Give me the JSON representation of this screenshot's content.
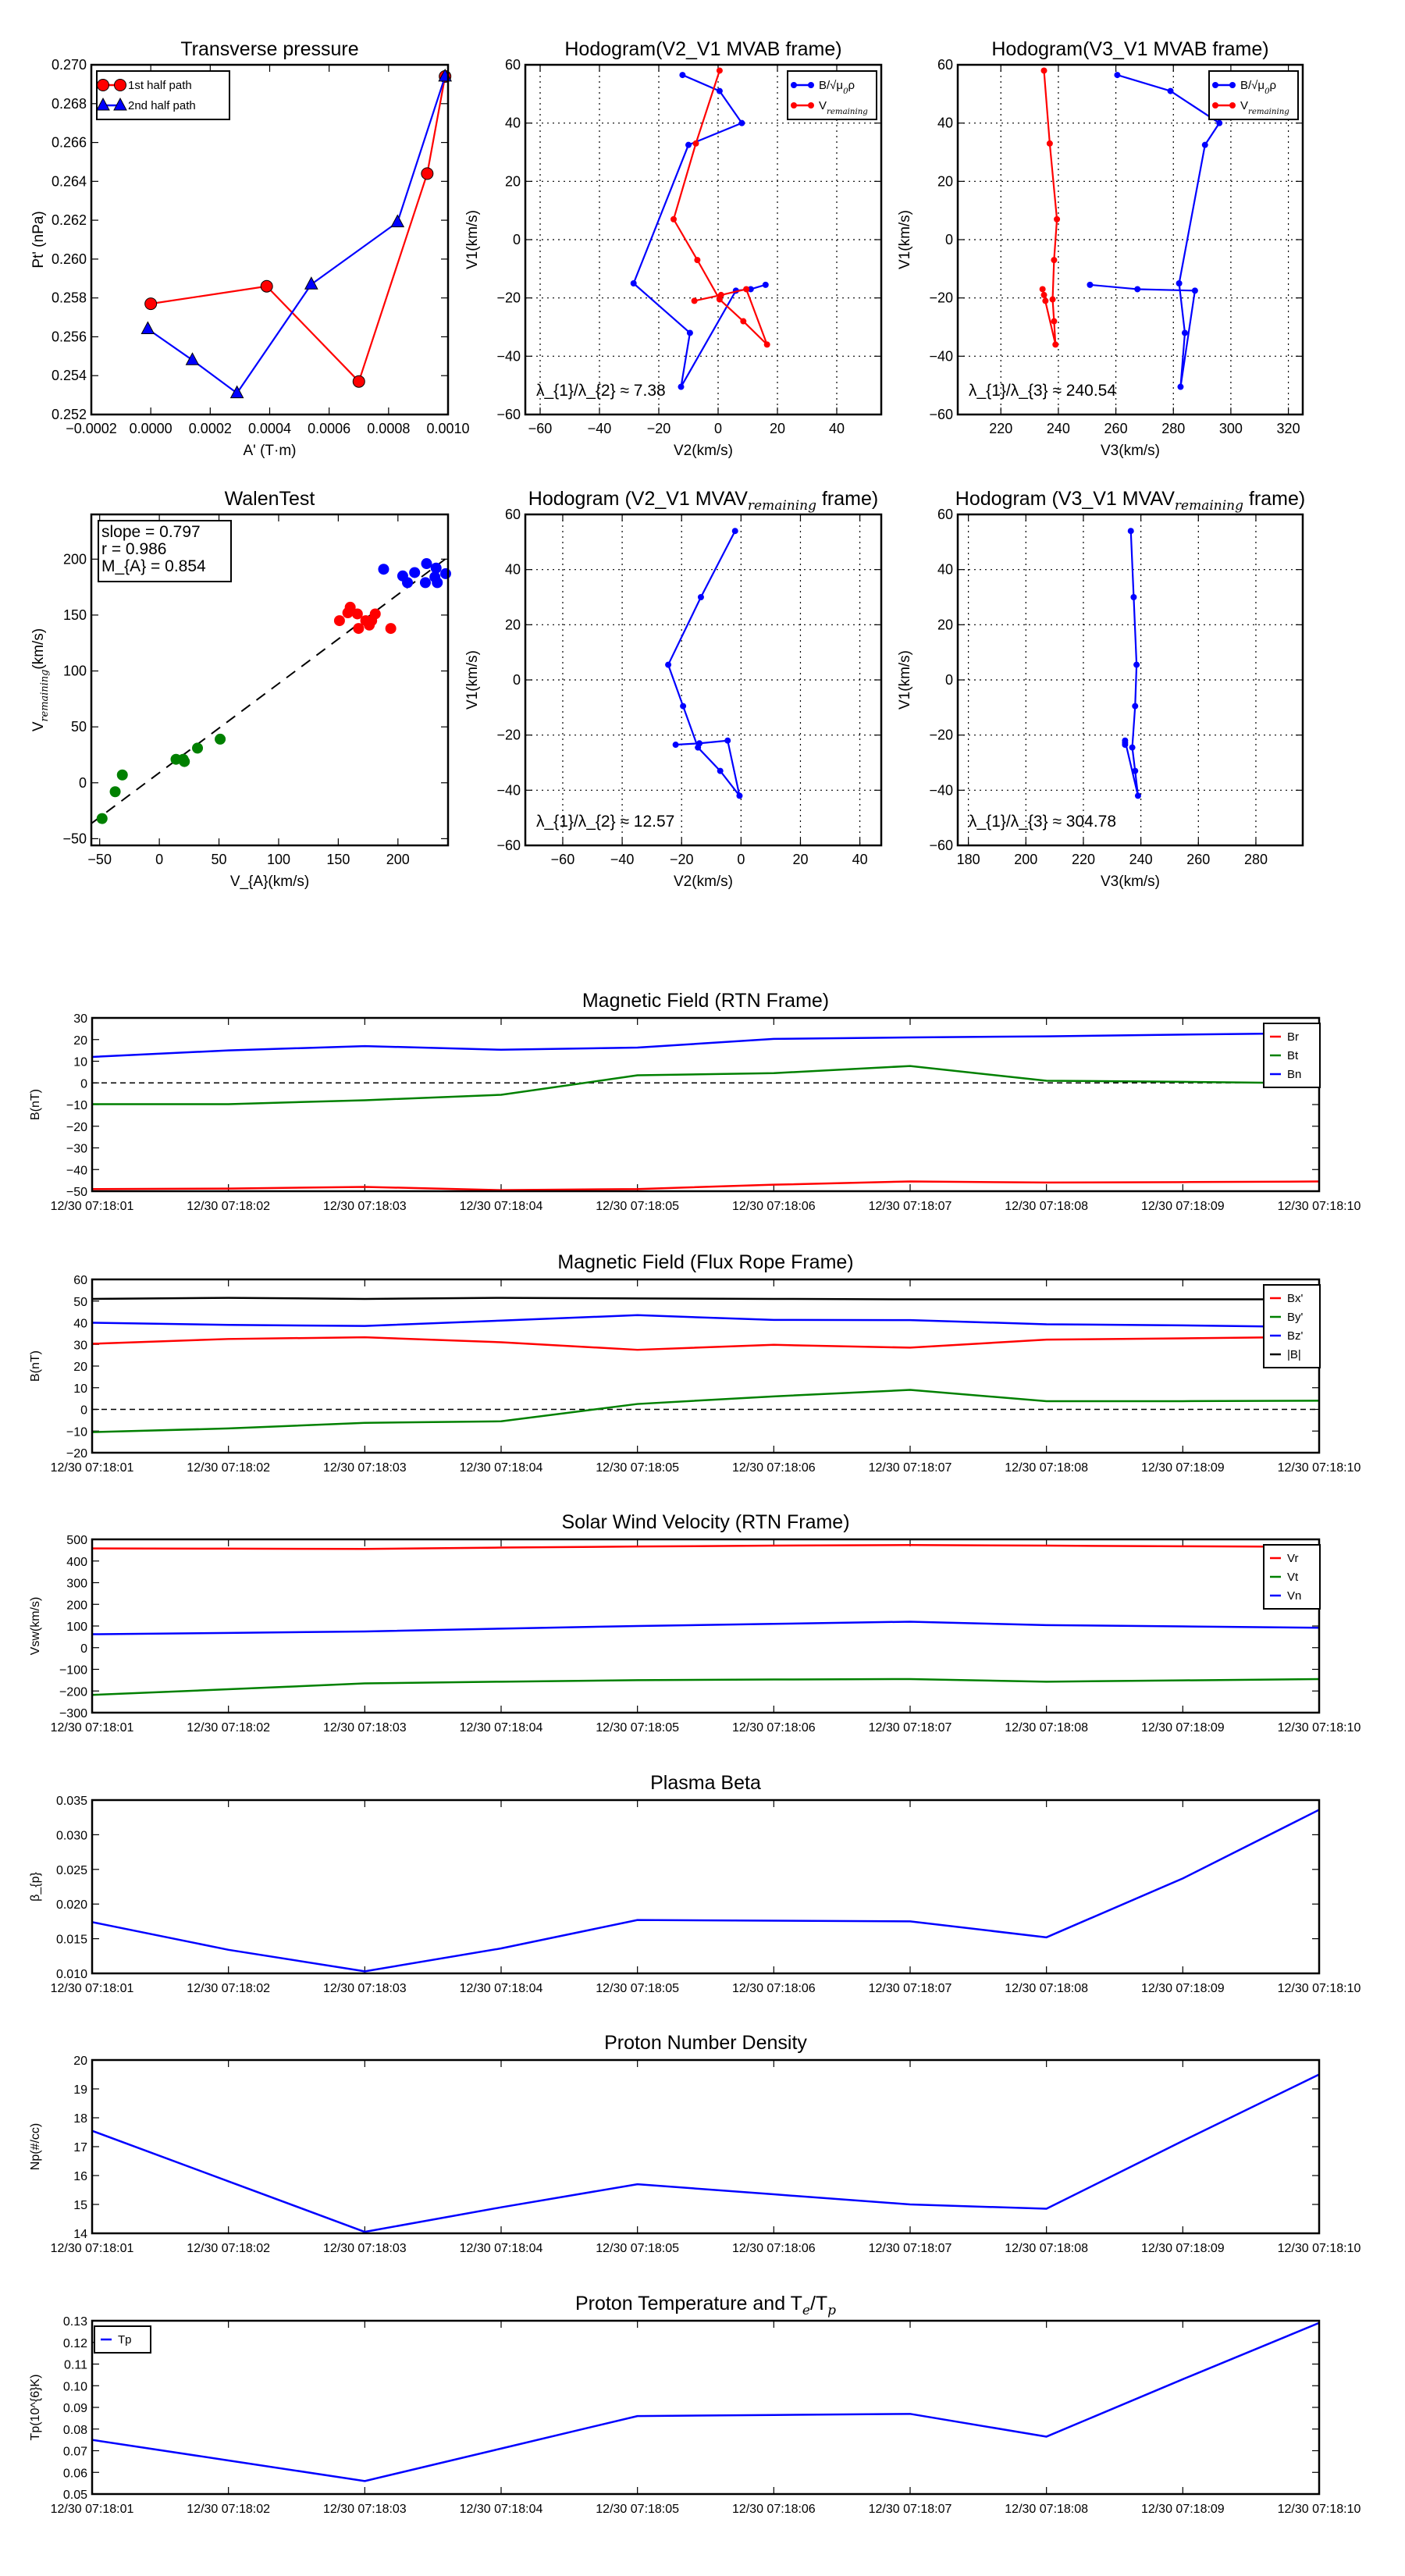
{
  "colors": {
    "red": "#ff0000",
    "green": "#008000",
    "blue": "#0000ff",
    "black": "#000000"
  },
  "chart_data": [
    {
      "type": "line",
      "title": "Transverse pressure",
      "xlabel": "A' (T·m)",
      "ylabel": "Pt' (nPa)",
      "xlim": [
        -0.0002,
        0.001
      ],
      "ylim": [
        0.252,
        0.27
      ],
      "xticks": [
        -0.0002,
        0,
        0.0002,
        0.0004,
        0.0006,
        0.0008,
        0.001
      ],
      "xtick_labels": [
        "−0.0002",
        "0.0000",
        "0.0002",
        "0.0004",
        "0.0006",
        "0.0008",
        "0.0010"
      ],
      "yticks": [
        0.252,
        0.254,
        0.256,
        0.258,
        0.26,
        0.262,
        0.264,
        0.266,
        0.268,
        0.27
      ],
      "ytick_labels": [
        "0.252",
        "0.254",
        "0.256",
        "0.258",
        "0.260",
        "0.262",
        "0.264",
        "0.266",
        "0.268",
        "0.270"
      ],
      "grid": false,
      "legend": "top-left",
      "series": [
        {
          "name": "1st half path",
          "color": "#ff0000",
          "marker": "circle",
          "x": [
            0.0,
            0.00039,
            0.0007,
            0.00093,
            0.00099
          ],
          "y": [
            0.2577,
            0.2586,
            0.2537,
            0.2644,
            0.2694
          ]
        },
        {
          "name": "2nd half path",
          "color": "#0000ff",
          "marker": "triangle",
          "x": [
            -1e-05,
            0.00014,
            0.00029,
            0.00054,
            0.00083,
            0.00099
          ],
          "y": [
            0.2564,
            0.2548,
            0.2531,
            0.2587,
            0.2619,
            0.2694
          ]
        }
      ]
    },
    {
      "type": "line",
      "title": "Hodogram(V2_V1 MVAB frame)",
      "xlabel": "V2(km/s)",
      "ylabel": "V1(km/s)",
      "xlim": [
        -65,
        55
      ],
      "ylim": [
        -60,
        60
      ],
      "xticks": [
        -60,
        -40,
        -20,
        0,
        20,
        40
      ],
      "xtick_labels": [
        "−60",
        "−40",
        "−20",
        "0",
        "20",
        "40"
      ],
      "yticks": [
        -60,
        -40,
        -20,
        0,
        20,
        40,
        60
      ],
      "ytick_labels": [
        "−60",
        "−40",
        "−20",
        "0",
        "20",
        "40",
        "60"
      ],
      "grid": true,
      "legend": "top-right",
      "annotation": "λ_{1}/λ_{2} ≈ 7.38",
      "series": [
        {
          "name": "B/√μ_{0}ρ",
          "color": "#0000ff",
          "marker": "dot",
          "x": [
            -12,
            0.5,
            8,
            -10,
            -28.5,
            -9.5,
            -12.5,
            6,
            11,
            16
          ],
          "y": [
            56.5,
            51,
            40,
            32.5,
            -15,
            -32,
            -50.5,
            -17.5,
            -17,
            -15.5
          ]
        },
        {
          "name": "V_{remaining}",
          "color": "#ff0000",
          "marker": "dot",
          "x": [
            0.5,
            -7.5,
            -15,
            -7,
            0.5,
            8.5,
            16.5,
            9.5,
            1,
            -8
          ],
          "y": [
            58,
            33,
            7,
            -7,
            -20.5,
            -28,
            -36,
            -17,
            -19,
            -21
          ]
        }
      ]
    },
    {
      "type": "line",
      "title": "Hodogram(V3_V1 MVAB frame)",
      "xlabel": "V3(km/s)",
      "ylabel": "V1(km/s)",
      "xlim": [
        205,
        325
      ],
      "ylim": [
        -60,
        60
      ],
      "xticks": [
        220,
        240,
        260,
        280,
        300,
        320
      ],
      "xtick_labels": [
        "220",
        "240",
        "260",
        "280",
        "300",
        "320"
      ],
      "yticks": [
        -60,
        -40,
        -20,
        0,
        20,
        40,
        60
      ],
      "ytick_labels": [
        "−60",
        "−40",
        "−20",
        "0",
        "20",
        "40",
        "60"
      ],
      "grid": true,
      "legend": "top-right",
      "annotation": "λ_{1}/λ_{3} ≈ 240.54",
      "series": [
        {
          "name": "B/√μ_{0}ρ",
          "color": "#0000ff",
          "marker": "dot",
          "x": [
            260.5,
            279,
            296,
            291,
            282,
            284,
            282.5,
            287.5,
            267.5,
            251
          ],
          "y": [
            56.5,
            51,
            40,
            32.5,
            -15,
            -32,
            -50.5,
            -17.5,
            -17,
            -15.5
          ]
        },
        {
          "name": "V_{remaining}",
          "color": "#ff0000",
          "marker": "dot",
          "x": [
            235,
            237,
            239.5,
            238.5,
            238,
            238.5,
            239,
            234.5,
            235,
            235.5
          ],
          "y": [
            58,
            33,
            7,
            -7,
            -20.5,
            -28,
            -36,
            -17,
            -19,
            -21
          ]
        }
      ]
    },
    {
      "type": "scatter",
      "title": "WalenTest",
      "xlabel": "V_{A}(km/s)",
      "ylabel": "V_{remaining}(km/s)",
      "xlim": [
        -57,
        242
      ],
      "ylim": [
        -56,
        240
      ],
      "xticks": [
        -50,
        0,
        50,
        100,
        150,
        200
      ],
      "xtick_labels": [
        "−50",
        "0",
        "50",
        "100",
        "150",
        "200"
      ],
      "yticks": [
        -50,
        0,
        50,
        100,
        150,
        200
      ],
      "ytick_labels": [
        "−50",
        "0",
        "50",
        "100",
        "150",
        "200"
      ],
      "grid": false,
      "stats": [
        "slope = 0.797",
        "r = 0.986",
        "M_{A} = 0.854"
      ],
      "fit": {
        "slope": 0.797,
        "intercept": 9
      },
      "series": [
        {
          "name": "green",
          "color": "#008000",
          "marker": "bigdot",
          "noline": true,
          "x": [
            -48,
            -37,
            -31,
            14,
            20,
            21,
            32,
            51
          ],
          "y": [
            -32,
            -8,
            7,
            21,
            21,
            19,
            31,
            39
          ]
        },
        {
          "name": "red",
          "color": "#ff0000",
          "marker": "bigdot",
          "noline": true,
          "x": [
            151,
            158,
            160,
            166,
            167,
            173,
            176,
            178,
            181,
            194
          ],
          "y": [
            145,
            152,
            157,
            151,
            138,
            145,
            141,
            145,
            151,
            138
          ]
        },
        {
          "name": "blue",
          "color": "#0000ff",
          "marker": "bigdot",
          "noline": true,
          "x": [
            188,
            204,
            208,
            214,
            223,
            224,
            231,
            232,
            233,
            240
          ],
          "y": [
            191,
            185,
            179,
            188,
            179,
            196,
            184,
            192,
            179,
            187
          ]
        }
      ]
    },
    {
      "type": "line",
      "title": "Hodogram (V2_V1 MVAV_{remaining} frame)",
      "xlabel": "V2(km/s)",
      "ylabel": "V1(km/s)",
      "xlim": [
        -72.6,
        47.2
      ],
      "ylim": [
        -60,
        60
      ],
      "xticks": [
        -60,
        -40,
        -20,
        0,
        20,
        40
      ],
      "xtick_labels": [
        "−60",
        "−40",
        "−20",
        "0",
        "20",
        "40"
      ],
      "yticks": [
        -60,
        -40,
        -20,
        0,
        20,
        40,
        60
      ],
      "ytick_labels": [
        "−60",
        "−40",
        "−20",
        "0",
        "20",
        "40",
        "60"
      ],
      "grid": true,
      "annotation": "λ_{1}/λ_{2} ≈ 12.57",
      "series": [
        {
          "name": "V",
          "color": "#0000ff",
          "marker": "dot",
          "nolegend": true,
          "x": [
            -2,
            -13.5,
            -24.5,
            -19.5,
            -14.5,
            -7,
            -0.5,
            -4.5,
            -14,
            -22
          ],
          "y": [
            54,
            30,
            5.5,
            -9.5,
            -24.5,
            -33,
            -42,
            -22,
            -23,
            -23.5
          ]
        }
      ]
    },
    {
      "type": "line",
      "title": "Hodogram (V3_V1 MVAV_{remaining} frame)",
      "xlabel": "V3(km/s)",
      "ylabel": "V1(km/s)",
      "xlim": [
        176.3,
        296.3
      ],
      "ylim": [
        -60,
        60
      ],
      "xticks": [
        180,
        200,
        220,
        240,
        260,
        280
      ],
      "xtick_labels": [
        "180",
        "200",
        "220",
        "240",
        "260",
        "280"
      ],
      "yticks": [
        -60,
        -40,
        -20,
        0,
        20,
        40,
        60
      ],
      "ytick_labels": [
        "−60",
        "−40",
        "−20",
        "0",
        "20",
        "40",
        "60"
      ],
      "grid": true,
      "annotation": "λ_{1}/λ_{3} ≈ 304.78",
      "series": [
        {
          "name": "V",
          "color": "#0000ff",
          "marker": "dot",
          "nolegend": true,
          "x": [
            236.5,
            237.5,
            238.5,
            238,
            237,
            238,
            239,
            234.5,
            234.5,
            234.5
          ],
          "y": [
            54,
            30,
            5.5,
            -9.5,
            -24.5,
            -33,
            -42,
            -22,
            -22.8,
            -23.5
          ]
        }
      ]
    },
    {
      "type": "line",
      "title": "Magnetic Field (RTN Frame)",
      "ylabel": "B(nT)",
      "ylim": [
        -50,
        30
      ],
      "yticks": [
        -50,
        -40,
        -30,
        -20,
        -10,
        0,
        10,
        20,
        30
      ],
      "ytick_labels": [
        "−50",
        "−40",
        "−30",
        "−20",
        "−10",
        "0",
        "10",
        "20",
        "30"
      ],
      "time_labels": [
        "12/30 07:18:01",
        "12/30 07:18:02",
        "12/30 07:18:03",
        "12/30 07:18:04",
        "12/30 07:18:05",
        "12/30 07:18:06",
        "12/30 07:18:07",
        "12/30 07:18:08",
        "12/30 07:18:09",
        "12/30 07:18:10"
      ],
      "hline": 0,
      "legend": "top-right",
      "series": [
        {
          "name": "Br",
          "color": "#ff0000",
          "y": [
            -49,
            -48.8,
            -48,
            -49.5,
            -49,
            -47,
            -45.5,
            -46,
            -45.8,
            -45.5
          ]
        },
        {
          "name": "Bt",
          "color": "#008000",
          "y": [
            -9.8,
            -9.8,
            -8,
            -5.5,
            3.5,
            4.5,
            7.8,
            1,
            0.5,
            -0.2
          ]
        },
        {
          "name": "Bn",
          "color": "#0000ff",
          "y": [
            12,
            15,
            17,
            15.3,
            16.3,
            20.3,
            21,
            21.5,
            22.3,
            23
          ]
        }
      ]
    },
    {
      "type": "line",
      "title": "Magnetic Field (Flux Rope Frame)",
      "ylabel": "B(nT)",
      "ylim": [
        -20,
        60
      ],
      "yticks": [
        -20,
        -10,
        0,
        10,
        20,
        30,
        40,
        50,
        60
      ],
      "ytick_labels": [
        "−20",
        "−10",
        "0",
        "10",
        "20",
        "30",
        "40",
        "50",
        "60"
      ],
      "time_labels": [
        "12/30 07:18:01",
        "12/30 07:18:02",
        "12/30 07:18:03",
        "12/30 07:18:04",
        "12/30 07:18:05",
        "12/30 07:18:06",
        "12/30 07:18:07",
        "12/30 07:18:08",
        "12/30 07:18:09",
        "12/30 07:18:10"
      ],
      "hline": 0,
      "legend": "top-right",
      "series": [
        {
          "name": "Bx'",
          "color": "#ff0000",
          "y": [
            30.3,
            32.5,
            33.3,
            31,
            27.5,
            29.8,
            28.5,
            32.2,
            32.8,
            33.5
          ]
        },
        {
          "name": "By'",
          "color": "#008000",
          "y": [
            -10.5,
            -8.8,
            -6.2,
            -5.5,
            2.5,
            6,
            9,
            3.8,
            3.8,
            4
          ]
        },
        {
          "name": "Bz'",
          "color": "#0000ff",
          "y": [
            40,
            39,
            38.5,
            41,
            43.5,
            41.3,
            41.2,
            39.3,
            38.8,
            38
          ]
        },
        {
          "name": "|B|",
          "color": "#000000",
          "y": [
            51,
            51.5,
            51,
            51.5,
            51.2,
            51,
            50.8,
            50.8,
            50.8,
            50.8
          ]
        }
      ]
    },
    {
      "type": "line",
      "title": "Solar Wind Velocity (RTN Frame)",
      "ylabel": "Vsw(km/s)",
      "ylim": [
        -300,
        500
      ],
      "yticks": [
        -300,
        -200,
        -100,
        0,
        100,
        200,
        300,
        400,
        500
      ],
      "ytick_labels": [
        "−300",
        "−200",
        "−100",
        "0",
        "100",
        "200",
        "300",
        "400",
        "500"
      ],
      "time_labels": [
        "12/30 07:18:01",
        "12/30 07:18:02",
        "12/30 07:18:03",
        "12/30 07:18:04",
        "12/30 07:18:05",
        "12/30 07:18:06",
        "12/30 07:18:07",
        "12/30 07:18:08",
        "12/30 07:18:09",
        "12/30 07:18:10"
      ],
      "legend": "top-right",
      "series": [
        {
          "name": "Vr",
          "color": "#ff0000",
          "y": [
            458,
            457,
            456,
            462,
            467,
            471,
            474,
            471,
            468,
            466
          ]
        },
        {
          "name": "Vt",
          "color": "#008000",
          "y": [
            -218,
            -192,
            -165,
            -157,
            -150,
            -147,
            -145,
            -157,
            -151,
            -145
          ]
        },
        {
          "name": "Vn",
          "color": "#0000ff",
          "y": [
            62,
            68,
            75,
            88,
            100,
            110,
            120,
            104,
            98,
            92
          ]
        }
      ]
    },
    {
      "type": "line",
      "title": "Plasma Beta",
      "ylabel": "β_{p}",
      "ylim": [
        0.01,
        0.035
      ],
      "yticks": [
        0.01,
        0.015,
        0.02,
        0.025,
        0.03,
        0.035
      ],
      "ytick_labels": [
        "0.010",
        "0.015",
        "0.020",
        "0.025",
        "0.030",
        "0.035"
      ],
      "time_labels": [
        "12/30 07:18:01",
        "12/30 07:18:02",
        "12/30 07:18:03",
        "12/30 07:18:04",
        "12/30 07:18:05",
        "12/30 07:18:06",
        "12/30 07:18:07",
        "12/30 07:18:08",
        "12/30 07:18:09",
        "12/30 07:18:10"
      ],
      "series": [
        {
          "name": "beta",
          "color": "#0000ff",
          "nolegend": true,
          "y": [
            0.0174,
            0.0134,
            0.0103,
            0.0136,
            0.0177,
            0.0176,
            0.0175,
            0.0152,
            0.0237,
            0.0336
          ]
        }
      ]
    },
    {
      "type": "line",
      "title": "Proton Number Density",
      "ylabel": "Np(#/cc)",
      "ylim": [
        14,
        20
      ],
      "yticks": [
        14,
        15,
        16,
        17,
        18,
        19,
        20
      ],
      "ytick_labels": [
        "14",
        "15",
        "16",
        "17",
        "18",
        "19",
        "20"
      ],
      "time_labels": [
        "12/30 07:18:01",
        "12/30 07:18:02",
        "12/30 07:18:03",
        "12/30 07:18:04",
        "12/30 07:18:05",
        "12/30 07:18:06",
        "12/30 07:18:07",
        "12/30 07:18:08",
        "12/30 07:18:09",
        "12/30 07:18:10"
      ],
      "series": [
        {
          "name": "Np",
          "color": "#0000ff",
          "nolegend": true,
          "y": [
            17.55,
            15.8,
            14.05,
            14.9,
            15.7,
            15.35,
            15.0,
            14.85,
            17.2,
            19.5
          ]
        }
      ]
    },
    {
      "type": "line",
      "title": "Proton Temperature and T_{e}/T_{p}",
      "ylabel": "Tp(10^{6}K)",
      "ylim": [
        0.05,
        0.13
      ],
      "yticks": [
        0.05,
        0.06,
        0.07,
        0.08,
        0.09,
        0.1,
        0.11,
        0.12,
        0.13
      ],
      "ytick_labels": [
        "0.05",
        "0.06",
        "0.07",
        "0.08",
        "0.09",
        "0.10",
        "0.11",
        "0.12",
        "0.13"
      ],
      "time_labels": [
        "12/30 07:18:01",
        "12/30 07:18:02",
        "12/30 07:18:03",
        "12/30 07:18:04",
        "12/30 07:18:05",
        "12/30 07:18:06",
        "12/30 07:18:07",
        "12/30 07:18:08",
        "12/30 07:18:09",
        "12/30 07:18:10"
      ],
      "legend": "top-left",
      "series": [
        {
          "name": "Tp",
          "color": "#0000ff",
          "y": [
            0.075,
            0.0655,
            0.056,
            0.071,
            0.086,
            0.0865,
            0.087,
            0.0765,
            0.103,
            0.129
          ]
        }
      ]
    }
  ]
}
